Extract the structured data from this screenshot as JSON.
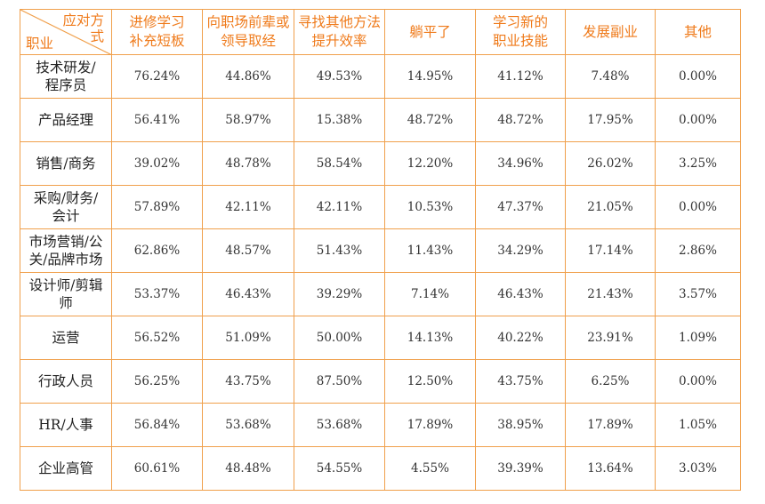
{
  "table": {
    "corner_top": "应对方式",
    "corner_bottom": "职业",
    "columns": [
      "进修学习补充短板",
      "向职场前辈或领导取经",
      "寻找其他方法提升效率",
      "躺平了",
      "学习新的职业技能",
      "发展副业",
      "其他"
    ],
    "rows": [
      {
        "label": "技术研发/程序员",
        "values": [
          "76.24%",
          "44.86%",
          "49.53%",
          "14.95%",
          "41.12%",
          "7.48%",
          "0.00%"
        ]
      },
      {
        "label": "产品经理",
        "values": [
          "56.41%",
          "58.97%",
          "15.38%",
          "48.72%",
          "48.72%",
          "17.95%",
          "0.00%"
        ]
      },
      {
        "label": "销售/商务",
        "values": [
          "39.02%",
          "48.78%",
          "58.54%",
          "12.20%",
          "34.96%",
          "26.02%",
          "3.25%"
        ]
      },
      {
        "label": "采购/财务/会计",
        "values": [
          "57.89%",
          "42.11%",
          "42.11%",
          "10.53%",
          "47.37%",
          "21.05%",
          "0.00%"
        ]
      },
      {
        "label": "市场营销/公关/品牌市场",
        "values": [
          "62.86%",
          "48.57%",
          "51.43%",
          "11.43%",
          "34.29%",
          "17.14%",
          "2.86%"
        ]
      },
      {
        "label": "设计师/剪辑师",
        "values": [
          "53.37%",
          "46.43%",
          "39.29%",
          "7.14%",
          "46.43%",
          "21.43%",
          "3.57%"
        ]
      },
      {
        "label": "运营",
        "values": [
          "56.52%",
          "51.09%",
          "50.00%",
          "14.13%",
          "40.22%",
          "23.91%",
          "1.09%"
        ]
      },
      {
        "label": "行政人员",
        "values": [
          "56.25%",
          "43.75%",
          "87.50%",
          "12.50%",
          "43.75%",
          "6.25%",
          "0.00%"
        ]
      },
      {
        "label": "HR/人事",
        "values": [
          "56.84%",
          "53.68%",
          "53.68%",
          "17.89%",
          "38.95%",
          "17.89%",
          "1.05%"
        ]
      },
      {
        "label": "企业高管",
        "values": [
          "60.61%",
          "48.48%",
          "54.55%",
          "4.55%",
          "39.39%",
          "13.64%",
          "3.03%"
        ]
      }
    ]
  }
}
